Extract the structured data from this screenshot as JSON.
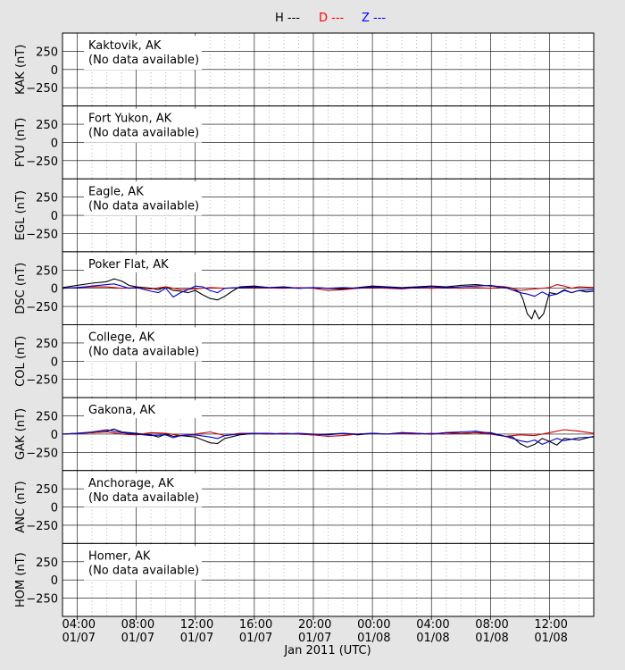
{
  "legend": [
    {
      "label": "H ---",
      "color": "#000000"
    },
    {
      "label": "D ---",
      "color": "#ff0000"
    },
    {
      "label": "Z ---",
      "color": "#0000ff"
    }
  ],
  "chart_data": {
    "type": "line",
    "x_ticks": [
      {
        "time": "04:00",
        "date": "01/07"
      },
      {
        "time": "08:00",
        "date": "01/07"
      },
      {
        "time": "12:00",
        "date": "01/07"
      },
      {
        "time": "16:00",
        "date": "01/07"
      },
      {
        "time": "20:00",
        "date": "01/07"
      },
      {
        "time": "00:00",
        "date": "01/08"
      },
      {
        "time": "04:00",
        "date": "01/08"
      },
      {
        "time": "08:00",
        "date": "01/08"
      },
      {
        "time": "12:00",
        "date": "01/08"
      }
    ],
    "xlim_hours": [
      3,
      39
    ],
    "xlabel": "Jan 2011 (UTC)",
    "ylim": [
      -500,
      500
    ],
    "y_ticks": [
      250,
      0,
      -250
    ],
    "grid": true,
    "panels": [
      {
        "code": "KAK",
        "ylabel": "KAK (nT)",
        "station": "Kaktovik, AK",
        "note": "(No data available)",
        "series": []
      },
      {
        "code": "FYU",
        "ylabel": "FYU (nT)",
        "station": "Fort Yukon, AK",
        "note": "(No data available)",
        "series": []
      },
      {
        "code": "EGL",
        "ylabel": "EGL (nT)",
        "station": "Eagle, AK",
        "note": "(No data available)",
        "series": []
      },
      {
        "code": "DSC",
        "ylabel": "DSC (nT)",
        "station": "Poker Flat, AK",
        "note": "",
        "series": [
          {
            "name": "H",
            "color": "#000000",
            "x": [
              3,
              4,
              5,
              6,
              6.5,
              7,
              7.5,
              8,
              9,
              9.5,
              10,
              10.5,
              11,
              11.5,
              12,
              12.5,
              13,
              13.5,
              14,
              14.5,
              15,
              16,
              17,
              18,
              19,
              20,
              21,
              22,
              23,
              24,
              25,
              26,
              27,
              28,
              29,
              30,
              31,
              32,
              33,
              33.5,
              34,
              34.2,
              34.5,
              34.8,
              35,
              35.3,
              35.6,
              36,
              36.5,
              37,
              37.5,
              38,
              38.5,
              39
            ],
            "y": [
              10,
              40,
              70,
              90,
              130,
              100,
              40,
              20,
              0,
              -20,
              20,
              -30,
              -40,
              -60,
              -30,
              -90,
              -140,
              -160,
              -110,
              -40,
              20,
              30,
              10,
              20,
              0,
              10,
              0,
              -10,
              10,
              30,
              20,
              10,
              20,
              30,
              20,
              40,
              50,
              30,
              20,
              0,
              -60,
              -150,
              -350,
              -420,
              -300,
              -420,
              -350,
              -60,
              -80,
              -20,
              -60,
              -30,
              -50,
              -40
            ]
          },
          {
            "name": "D",
            "color": "#cc0000",
            "x": [
              3,
              4,
              5,
              6,
              7,
              8,
              9,
              10,
              11,
              12,
              13,
              14,
              15,
              16,
              17,
              18,
              19,
              20,
              21,
              22,
              23,
              24,
              25,
              26,
              27,
              28,
              29,
              30,
              31,
              32,
              33,
              34,
              35,
              36,
              36.5,
              37,
              37.5,
              38,
              39
            ],
            "y": [
              0,
              10,
              20,
              20,
              0,
              10,
              -10,
              20,
              -20,
              -10,
              10,
              0,
              10,
              10,
              5,
              0,
              10,
              0,
              -30,
              -20,
              0,
              10,
              0,
              -10,
              10,
              0,
              10,
              0,
              10,
              0,
              20,
              -30,
              -10,
              10,
              50,
              30,
              0,
              20,
              10
            ]
          },
          {
            "name": "Z",
            "color": "#0000cc",
            "x": [
              3,
              4,
              5,
              6,
              6.5,
              7,
              7.5,
              8,
              9,
              9.5,
              10,
              10.5,
              11,
              11.5,
              12,
              12.5,
              13,
              13.5,
              14,
              15,
              16,
              17,
              18,
              19,
              20,
              21,
              22,
              23,
              24,
              25,
              26,
              27,
              28,
              29,
              30,
              31,
              32,
              33,
              34,
              34.5,
              35,
              35.5,
              36,
              36.5,
              37,
              37.5,
              38,
              39
            ],
            "y": [
              0,
              10,
              30,
              50,
              60,
              30,
              0,
              10,
              -40,
              -60,
              0,
              -120,
              -60,
              -20,
              30,
              20,
              -30,
              -60,
              0,
              10,
              20,
              10,
              10,
              0,
              10,
              0,
              10,
              0,
              20,
              10,
              0,
              10,
              20,
              10,
              20,
              30,
              40,
              10,
              -60,
              -80,
              -110,
              -50,
              -100,
              -80,
              -30,
              -60,
              -30,
              -20
            ]
          }
        ]
      },
      {
        "code": "COL",
        "ylabel": "COL (nT)",
        "station": "College, AK",
        "note": "(No data available)",
        "series": []
      },
      {
        "code": "GAK",
        "ylabel": "GAK (nT)",
        "station": "Gakona, AK",
        "note": "",
        "series": [
          {
            "name": "H",
            "color": "#000000",
            "x": [
              3,
              4,
              5,
              6,
              6.5,
              7,
              8,
              9,
              9.5,
              10,
              10.5,
              11,
              12,
              12.5,
              13,
              13.5,
              14,
              15,
              16,
              17,
              18,
              19,
              20,
              21,
              22,
              23,
              24,
              25,
              26,
              27,
              28,
              29,
              30,
              31,
              32,
              33,
              33.5,
              34,
              34.5,
              35,
              35.5,
              36,
              36.5,
              37,
              38,
              39
            ],
            "y": [
              0,
              10,
              20,
              40,
              70,
              30,
              10,
              -10,
              -40,
              0,
              -30,
              -20,
              -40,
              -80,
              -120,
              -130,
              -60,
              -10,
              10,
              0,
              10,
              0,
              -10,
              0,
              10,
              -10,
              10,
              0,
              20,
              10,
              0,
              20,
              10,
              20,
              20,
              -30,
              -40,
              -130,
              -180,
              -140,
              -60,
              -100,
              -150,
              -60,
              -80,
              -30
            ]
          },
          {
            "name": "D",
            "color": "#cc0000",
            "x": [
              3,
              4,
              5,
              6,
              7,
              8,
              9,
              10,
              11,
              12,
              13,
              14,
              15,
              16,
              17,
              18,
              19,
              20,
              21,
              22,
              23,
              24,
              25,
              26,
              27,
              28,
              29,
              30,
              31,
              32,
              33,
              34,
              35,
              36,
              37,
              38,
              39
            ],
            "y": [
              0,
              10,
              20,
              30,
              0,
              -10,
              20,
              10,
              -20,
              0,
              30,
              -20,
              10,
              10,
              0,
              10,
              0,
              -10,
              -30,
              -20,
              0,
              10,
              0,
              10,
              0,
              10,
              0,
              10,
              20,
              0,
              -30,
              -10,
              -20,
              20,
              60,
              40,
              10
            ]
          },
          {
            "name": "Z",
            "color": "#0000cc",
            "x": [
              3,
              4,
              5,
              6,
              6.5,
              7,
              8,
              9,
              10,
              10.5,
              11,
              12,
              13,
              13.5,
              14,
              15,
              16,
              17,
              18,
              19,
              20,
              21,
              22,
              23,
              24,
              25,
              26,
              27,
              28,
              29,
              30,
              31,
              32,
              33,
              34,
              34.5,
              35,
              35.5,
              36,
              36.5,
              37,
              37.5,
              38,
              39
            ],
            "y": [
              0,
              10,
              30,
              60,
              40,
              20,
              0,
              -20,
              -10,
              -50,
              -20,
              -10,
              -40,
              -60,
              -20,
              0,
              10,
              10,
              0,
              10,
              0,
              -10,
              10,
              0,
              10,
              0,
              20,
              10,
              0,
              20,
              30,
              40,
              10,
              -30,
              -90,
              -110,
              -80,
              -140,
              -100,
              -60,
              -90,
              -70,
              -50,
              -40
            ]
          }
        ]
      },
      {
        "code": "ANC",
        "ylabel": "ANC (nT)",
        "station": "Anchorage, AK",
        "note": "(No data available)",
        "series": []
      },
      {
        "code": "HOM",
        "ylabel": "HOM (nT)",
        "station": "Homer, AK",
        "note": "(No data available)",
        "series": []
      }
    ]
  }
}
